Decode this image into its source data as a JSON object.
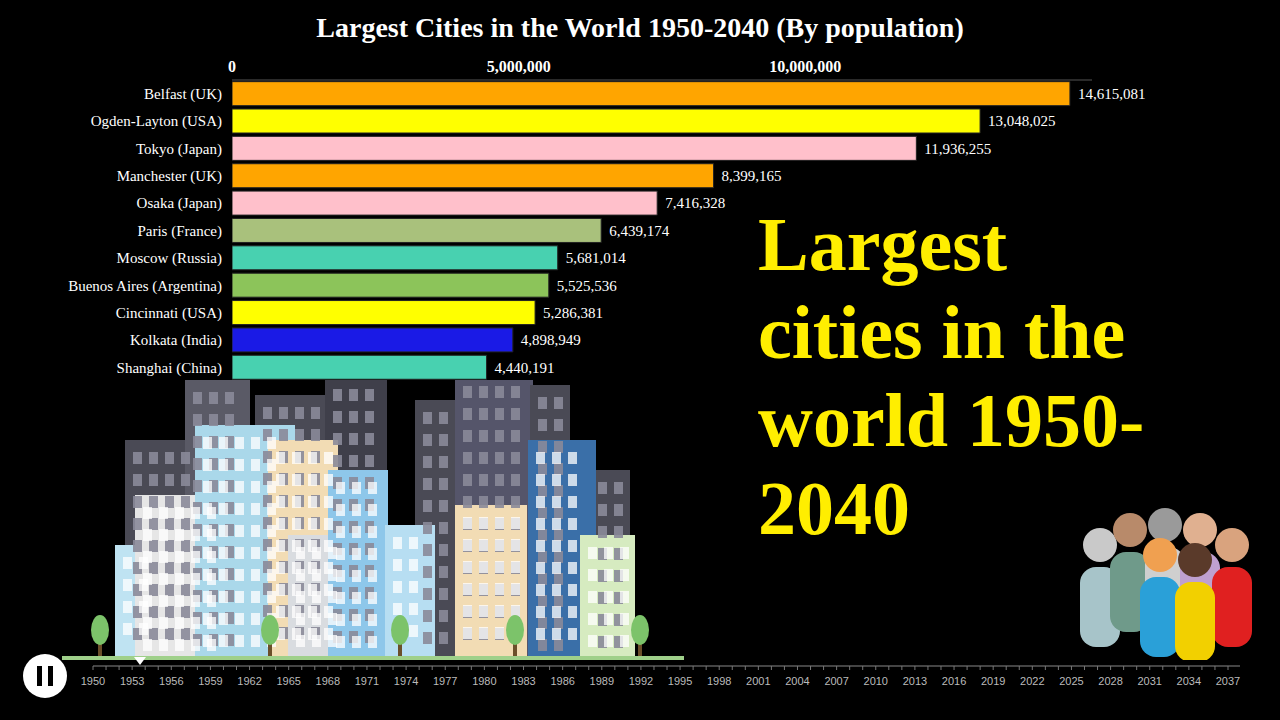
{
  "chart_data": {
    "type": "bar",
    "title": "Largest Cities in the World 1950-2040 (By population)",
    "orientation": "horizontal",
    "categories": [
      "Belfast (UK)",
      "Ogden-Layton (USA)",
      "Tokyo (Japan)",
      "Manchester (UK)",
      "Osaka (Japan)",
      "Paris (France)",
      "Moscow (Russia)",
      "Buenos Aires (Argentina)",
      "Cincinnati (USA)",
      "Kolkata  (India)",
      "Shanghai (China)"
    ],
    "values": [
      14615081,
      13048025,
      11936255,
      8399165,
      7416328,
      6439174,
      5681014,
      5525536,
      5286381,
      4898949,
      4440191
    ],
    "value_labels": [
      "14,615,081",
      "13,048,025",
      "11,936,255",
      "8,399,165",
      "7,416,328",
      "6,439,174",
      "5,681,014",
      "5,525,536",
      "5,286,381",
      "4,898,949",
      "4,440,191"
    ],
    "colors": [
      "#ffa500",
      "#ffff00",
      "#ffc0cb",
      "#ffa500",
      "#ffc0cb",
      "#a9c17c",
      "#48d1b0",
      "#8cc45a",
      "#ffff00",
      "#1a1ae6",
      "#48d1b0"
    ],
    "xlim": [
      0,
      15000000
    ],
    "xticks": [
      0,
      {
        "value": 5000000,
        "label": "5,000,000"
      },
      {
        "value": 10000000,
        "label": "10,000,000"
      }
    ],
    "grid": false,
    "data_labels": true,
    "annotations": [
      "Largest cities in the world 1950-2040"
    ]
  },
  "timeline": [
    1950,
    1953,
    1956,
    1959,
    1962,
    1965,
    1968,
    1971,
    1974,
    1977,
    1980,
    1983,
    1986,
    1989,
    1992,
    1995,
    1998,
    2001,
    2004,
    2007,
    2010,
    2013,
    2016,
    2019,
    2022,
    2025,
    2028,
    2031,
    2034,
    2037
  ]
}
